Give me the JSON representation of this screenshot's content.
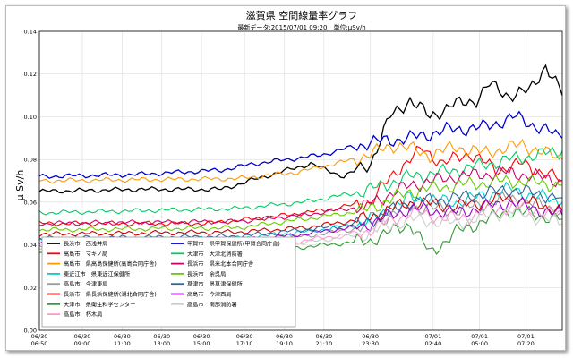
{
  "chart_data": {
    "type": "line",
    "title": "滋賀県 空間線量率グラフ",
    "subtitle": "最新データ:2015/07/01 09:20　単位:μSv/h",
    "ylabel": "μ Sv/h",
    "ylim": [
      0,
      0.14
    ],
    "yticks": [
      "0.00",
      "0.02",
      "0.04",
      "0.06",
      "0.08",
      "0.10",
      "0.12",
      "0.14"
    ],
    "xticks": [
      [
        "06/30",
        "06:50"
      ],
      [
        "06/30",
        "09:00"
      ],
      [
        "06/30",
        "11:00"
      ],
      [
        "06/30",
        "13:00"
      ],
      [
        "06/30",
        "15:00"
      ],
      [
        "06/30",
        "17:10"
      ],
      [
        "06/30",
        "19:10"
      ],
      [
        "06/30",
        "21:10"
      ],
      [
        "06/30",
        "23:30"
      ],
      [
        "07/01",
        "02:40"
      ],
      [
        "07/01",
        "05:00"
      ],
      [
        "07/01",
        "07:20"
      ]
    ],
    "x_range": [
      0,
      158
    ],
    "xtick_positions": [
      0,
      13,
      25,
      37,
      49,
      62,
      74,
      86,
      100,
      119,
      133,
      147
    ],
    "grid": true,
    "legend_placement": "bottom-left",
    "series": [
      {
        "name": "長浜市　西浅井局",
        "color": "#000000",
        "values": [
          [
            0,
            0.065
          ],
          [
            30,
            0.066
          ],
          [
            55,
            0.066
          ],
          [
            68,
            0.072
          ],
          [
            82,
            0.078
          ],
          [
            92,
            0.072
          ],
          [
            100,
            0.078
          ],
          [
            106,
            0.1
          ],
          [
            112,
            0.108
          ],
          [
            118,
            0.1
          ],
          [
            124,
            0.105
          ],
          [
            132,
            0.108
          ],
          [
            136,
            0.115
          ],
          [
            142,
            0.11
          ],
          [
            148,
            0.112
          ],
          [
            153,
            0.124
          ],
          [
            158,
            0.11
          ]
        ]
      },
      {
        "name": "高島市　マキノ局",
        "color": "#ff0000",
        "values": [
          [
            0,
            0.05
          ],
          [
            50,
            0.05
          ],
          [
            70,
            0.053
          ],
          [
            85,
            0.056
          ],
          [
            100,
            0.06
          ],
          [
            108,
            0.075
          ],
          [
            116,
            0.085
          ],
          [
            122,
            0.078
          ],
          [
            130,
            0.083
          ],
          [
            138,
            0.075
          ],
          [
            146,
            0.078
          ],
          [
            158,
            0.07
          ]
        ]
      },
      {
        "name": "高島市　県高島保健所(高島合同庁舎)",
        "color": "#ff9900",
        "values": [
          [
            0,
            0.07
          ],
          [
            60,
            0.071
          ],
          [
            78,
            0.074
          ],
          [
            95,
            0.08
          ],
          [
            108,
            0.087
          ],
          [
            118,
            0.082
          ],
          [
            126,
            0.086
          ],
          [
            134,
            0.083
          ],
          [
            146,
            0.087
          ],
          [
            158,
            0.08
          ]
        ]
      },
      {
        "name": "東近江市　県東近江保健所",
        "color": "#00cccc",
        "values": [
          [
            0,
            0.042
          ],
          [
            60,
            0.043
          ],
          [
            80,
            0.046
          ],
          [
            98,
            0.05
          ],
          [
            112,
            0.062
          ],
          [
            126,
            0.06
          ],
          [
            142,
            0.066
          ],
          [
            158,
            0.06
          ]
        ]
      },
      {
        "name": "高島市　今津東局",
        "color": "#999999",
        "values": [
          [
            0,
            0.04
          ],
          [
            60,
            0.041
          ],
          [
            80,
            0.044
          ],
          [
            98,
            0.048
          ],
          [
            112,
            0.058
          ],
          [
            126,
            0.056
          ],
          [
            142,
            0.062
          ],
          [
            158,
            0.056
          ]
        ]
      },
      {
        "name": "長浜市　県長浜保健所(湖北合同庁舎)",
        "color": "#cc0000",
        "values": [
          [
            0,
            0.045
          ],
          [
            60,
            0.046
          ],
          [
            80,
            0.048
          ],
          [
            98,
            0.052
          ],
          [
            112,
            0.06
          ],
          [
            126,
            0.058
          ],
          [
            142,
            0.062
          ],
          [
            158,
            0.056
          ]
        ]
      },
      {
        "name": "大津市　県衛生科学センター",
        "color": "#339933",
        "values": [
          [
            0,
            0.036
          ],
          [
            60,
            0.036
          ],
          [
            80,
            0.039
          ],
          [
            100,
            0.042
          ],
          [
            112,
            0.05
          ],
          [
            118,
            0.036
          ],
          [
            126,
            0.046
          ],
          [
            142,
            0.056
          ],
          [
            158,
            0.052
          ]
        ]
      },
      {
        "name": "高島市　朽木局",
        "color": "#ff99cc",
        "values": [
          [
            0,
            0.038
          ],
          [
            60,
            0.039
          ],
          [
            80,
            0.042
          ],
          [
            98,
            0.046
          ],
          [
            112,
            0.055
          ],
          [
            126,
            0.052
          ],
          [
            142,
            0.058
          ],
          [
            158,
            0.054
          ]
        ]
      },
      {
        "name": "甲賀市　県甲賀保健所(甲賀合同庁舎)",
        "color": "#0000cc",
        "values": [
          [
            0,
            0.072
          ],
          [
            30,
            0.073
          ],
          [
            55,
            0.075
          ],
          [
            65,
            0.078
          ],
          [
            85,
            0.082
          ],
          [
            100,
            0.088
          ],
          [
            112,
            0.09
          ],
          [
            124,
            0.094
          ],
          [
            134,
            0.095
          ],
          [
            144,
            0.1
          ],
          [
            158,
            0.09
          ]
        ]
      },
      {
        "name": "大津市　大津北消防署",
        "color": "#00cc66",
        "values": [
          [
            0,
            0.055
          ],
          [
            60,
            0.057
          ],
          [
            80,
            0.06
          ],
          [
            98,
            0.065
          ],
          [
            112,
            0.072
          ],
          [
            126,
            0.075
          ],
          [
            142,
            0.08
          ],
          [
            158,
            0.084
          ]
        ]
      },
      {
        "name": "長浜市　県米北本合同庁舎",
        "color": "#cc0066",
        "values": [
          [
            0,
            0.05
          ],
          [
            60,
            0.051
          ],
          [
            80,
            0.054
          ],
          [
            98,
            0.058
          ],
          [
            112,
            0.068
          ],
          [
            126,
            0.072
          ],
          [
            142,
            0.074
          ],
          [
            158,
            0.07
          ]
        ]
      },
      {
        "name": "長浜市　余呉局",
        "color": "#66cc00",
        "values": [
          [
            0,
            0.047
          ],
          [
            60,
            0.048
          ],
          [
            80,
            0.052
          ],
          [
            98,
            0.056
          ],
          [
            112,
            0.065
          ],
          [
            126,
            0.068
          ],
          [
            142,
            0.07
          ],
          [
            158,
            0.068
          ]
        ]
      },
      {
        "name": "草津市　県草津保健所",
        "color": "#336699",
        "values": [
          [
            0,
            0.043
          ],
          [
            60,
            0.044
          ],
          [
            80,
            0.047
          ],
          [
            98,
            0.05
          ],
          [
            112,
            0.06
          ],
          [
            126,
            0.062
          ],
          [
            142,
            0.066
          ],
          [
            158,
            0.062
          ]
        ]
      },
      {
        "name": "高島市　今津西局",
        "color": "#9900cc",
        "values": [
          [
            0,
            0.041
          ],
          [
            60,
            0.042
          ],
          [
            80,
            0.045
          ],
          [
            98,
            0.049
          ],
          [
            112,
            0.057
          ],
          [
            126,
            0.055
          ],
          [
            142,
            0.06
          ],
          [
            158,
            0.054
          ]
        ]
      },
      {
        "name": "高島市　南部消防署",
        "color": "#cccccc",
        "values": [
          [
            0,
            0.037
          ],
          [
            60,
            0.038
          ],
          [
            80,
            0.041
          ],
          [
            98,
            0.045
          ],
          [
            112,
            0.052
          ],
          [
            126,
            0.05
          ],
          [
            142,
            0.056
          ],
          [
            158,
            0.05
          ]
        ]
      }
    ]
  }
}
